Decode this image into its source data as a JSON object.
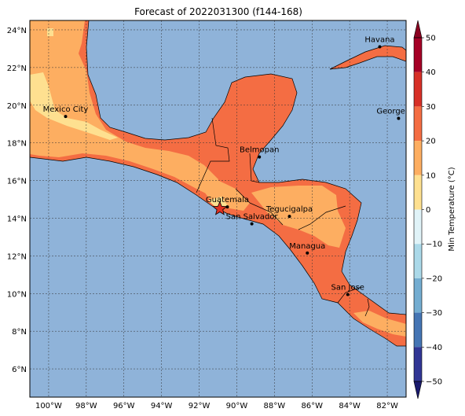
{
  "title": "Forecast of 2022031300 (f144-168)",
  "map": {
    "lon_range": [
      -101,
      -81
    ],
    "lat_range": [
      4.5,
      24.5
    ],
    "lon_ticks": [
      "100°W",
      "98°W",
      "96°W",
      "94°W",
      "92°W",
      "90°W",
      "88°W",
      "86°W",
      "84°W",
      "82°W"
    ],
    "lat_ticks": [
      "6°N",
      "8°N",
      "10°N",
      "12°N",
      "14°N",
      "16°N",
      "18°N",
      "20°N",
      "22°N",
      "24°N"
    ],
    "ocean_color": "#8fb3d9",
    "gridlines": true,
    "cities": [
      {
        "name": "Havana",
        "lon": -82.4,
        "lat": 23.1
      },
      {
        "name": "Mexico City",
        "lon": -99.1,
        "lat": 19.4
      },
      {
        "name": "George Tov",
        "lon": -81.4,
        "lat": 19.3
      },
      {
        "name": "Belmopan",
        "lon": -88.8,
        "lat": 17.25
      },
      {
        "name": "Guatemala",
        "lon": -90.5,
        "lat": 14.6
      },
      {
        "name": "Tegucigalpa",
        "lon": -87.2,
        "lat": 14.1
      },
      {
        "name": "San Salvador",
        "lon": -89.2,
        "lat": 13.7
      },
      {
        "name": "Managua",
        "lon": -86.25,
        "lat": 12.15
      },
      {
        "name": "San Jose",
        "lon": -84.1,
        "lat": 9.95
      }
    ],
    "marker": {
      "type": "star",
      "lon": -90.9,
      "lat": 14.5,
      "color": "#e03020"
    }
  },
  "colorbar": {
    "label": "Min Temperature (°C)",
    "ticks": [
      "50",
      "40",
      "30",
      "20",
      "10",
      "0",
      "−10",
      "−20",
      "−30",
      "−40",
      "−50"
    ],
    "colors": [
      "#a50026",
      "#d73027",
      "#f46d43",
      "#fdae61",
      "#fee090",
      "#e0f3f8",
      "#abd9e9",
      "#74add1",
      "#4575b4",
      "#313695"
    ],
    "top_extend_color": "#8b0020",
    "bottom_extend_color": "#1a1a6e"
  }
}
